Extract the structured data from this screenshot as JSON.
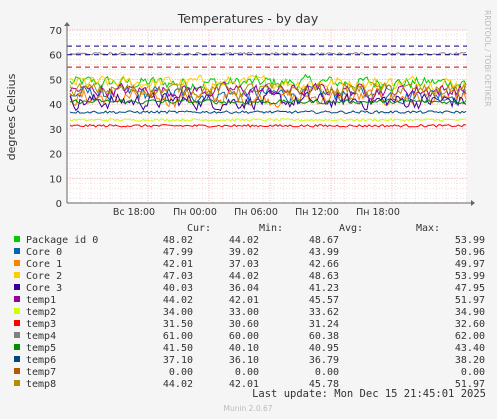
{
  "chart_data": {
    "type": "line",
    "title": "Temperatures - by day",
    "ylabel": "degrees Celsius",
    "side_label": "RRDTOOL / TOBI OETIKER",
    "ylim": [
      0,
      70
    ],
    "y_ticks": [
      0,
      10,
      20,
      30,
      40,
      50,
      60,
      70
    ],
    "x_ticks": [
      "Вс 18:00",
      "Пн 00:00",
      "Пн 06:00",
      "Пн 12:00",
      "Пн 18:00"
    ],
    "grid": true,
    "legend_headers": {
      "cur": "Cur:",
      "min": "Min:",
      "avg": "Avg:",
      "max": "Max:"
    },
    "series": [
      {
        "name": "Package id 0",
        "color": "#00cc00",
        "cur": "48.02",
        "min": "44.02",
        "avg": "48.67",
        "max": "53.99"
      },
      {
        "name": "Core 0",
        "color": "#0066b3",
        "cur": "47.99",
        "min": "39.02",
        "avg": "43.99",
        "max": "50.96"
      },
      {
        "name": "Core 1",
        "color": "#ff8000",
        "cur": "42.01",
        "min": "37.03",
        "avg": "42.66",
        "max": "49.97"
      },
      {
        "name": "Core 2",
        "color": "#ffcc00",
        "cur": "47.03",
        "min": "44.02",
        "avg": "48.63",
        "max": "53.99"
      },
      {
        "name": "Core 3",
        "color": "#330099",
        "cur": "40.03",
        "min": "36.04",
        "avg": "41.23",
        "max": "47.95"
      },
      {
        "name": "temp1",
        "color": "#990099",
        "cur": "44.02",
        "min": "42.01",
        "avg": "45.57",
        "max": "51.97"
      },
      {
        "name": "temp2",
        "color": "#ccff00",
        "cur": "34.00",
        "min": "33.00",
        "avg": "33.62",
        "max": "34.90"
      },
      {
        "name": "temp3",
        "color": "#ff0000",
        "cur": "31.50",
        "min": "30.60",
        "avg": "31.24",
        "max": "32.60"
      },
      {
        "name": "temp4",
        "color": "#808080",
        "cur": "61.00",
        "min": "60.00",
        "avg": "60.38",
        "max": "62.00"
      },
      {
        "name": "temp5",
        "color": "#008f00",
        "cur": "41.50",
        "min": "40.10",
        "avg": "40.95",
        "max": "43.40"
      },
      {
        "name": "temp6",
        "color": "#00487d",
        "cur": "37.10",
        "min": "36.10",
        "avg": "36.79",
        "max": "38.20"
      },
      {
        "name": "temp7",
        "color": "#b35a00",
        "cur": "0.00",
        "min": "0.00",
        "avg": "0.00",
        "max": "0.00"
      },
      {
        "name": "temp8",
        "color": "#b38f00",
        "cur": "44.02",
        "min": "42.01",
        "avg": "45.78",
        "max": "51.97"
      }
    ],
    "thresholds": [
      {
        "value": 63.5,
        "color": "#000080"
      },
      {
        "value": 60,
        "color": "#000080"
      },
      {
        "value": 55,
        "color": "#cc0000"
      }
    ]
  },
  "footer": {
    "last_update": "Last update: Mon Dec 15 21:45:01 2025",
    "munin_version": "Munin 2.0.67"
  }
}
